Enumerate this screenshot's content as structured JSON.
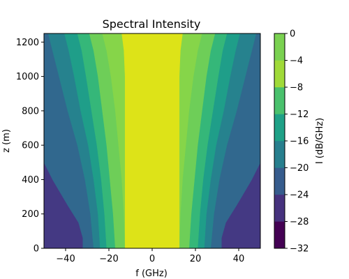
{
  "chart_data": {
    "type": "contourf",
    "title": "Spectral Intensity",
    "xlabel": "f (GHz)",
    "ylabel": "z (m)",
    "colorbar_label": "I (dB/GHz)",
    "xlim": [
      -50,
      50
    ],
    "ylim": [
      0,
      1250
    ],
    "x_ticks": [
      -40,
      -20,
      0,
      20,
      40
    ],
    "y_ticks": [
      0,
      200,
      400,
      600,
      800,
      1000,
      1200
    ],
    "levels": [
      -32,
      -28,
      -24,
      -20,
      -16,
      -12,
      -8,
      -4,
      0
    ],
    "level_colors": [
      "#440154",
      "#46327e",
      "#365c8d",
      "#277f8e",
      "#1fa187",
      "#4ac16d",
      "#a0da39",
      "#7ad151",
      "#dde318"
    ],
    "band_colors": [
      "#481f70",
      "#443983",
      "#31688e",
      "#26828e",
      "#1f9e89",
      "#35b779",
      "#6ece58",
      "#86d549",
      "#dde318"
    ],
    "contour_lines": [
      {
        "level": -4,
        "points": [
          [
            12.5,
            0
          ],
          [
            12.5,
            400
          ],
          [
            12.5,
            700
          ],
          [
            12.5,
            1000
          ],
          [
            13,
            1150
          ],
          [
            14,
            1250
          ]
        ]
      },
      {
        "level": -8,
        "points": [
          [
            12.5,
            0
          ],
          [
            13,
            200
          ],
          [
            14,
            400
          ],
          [
            15.5,
            600
          ],
          [
            17,
            800
          ],
          [
            19,
            1000
          ],
          [
            21,
            1150
          ],
          [
            23,
            1250
          ]
        ]
      },
      {
        "level": -12,
        "points": [
          [
            17,
            0
          ],
          [
            18,
            200
          ],
          [
            19.5,
            400
          ],
          [
            21,
            600
          ],
          [
            23,
            800
          ],
          [
            25,
            1000
          ],
          [
            27,
            1150
          ],
          [
            29,
            1250
          ]
        ]
      },
      {
        "level": -16,
        "points": [
          [
            21,
            0
          ],
          [
            22,
            200
          ],
          [
            23.5,
            400
          ],
          [
            25.5,
            600
          ],
          [
            28,
            800
          ],
          [
            30.5,
            1000
          ],
          [
            32.5,
            1150
          ],
          [
            34.5,
            1250
          ]
        ]
      },
      {
        "level": -20,
        "points": [
          [
            24,
            0
          ],
          [
            25,
            200
          ],
          [
            27,
            400
          ],
          [
            29.5,
            600
          ],
          [
            33,
            800
          ],
          [
            36,
            1000
          ],
          [
            38.5,
            1150
          ],
          [
            40.5,
            1250
          ]
        ]
      },
      {
        "level": -24,
        "points": [
          [
            27,
            0
          ],
          [
            28.5,
            200
          ],
          [
            31,
            400
          ],
          [
            34.5,
            600
          ],
          [
            39,
            800
          ],
          [
            43,
            1000
          ],
          [
            46,
            1150
          ],
          [
            48,
            1250
          ]
        ]
      },
      {
        "level": -28,
        "points": [
          [
            32,
            0
          ],
          [
            32,
            60
          ],
          [
            34,
            150
          ],
          [
            39,
            250
          ],
          [
            46,
            400
          ],
          [
            50,
            500
          ],
          [
            50,
            1250
          ]
        ]
      },
      {
        "level": -32,
        "points": [
          [
            50,
            0
          ],
          [
            50,
            1250
          ]
        ]
      }
    ]
  }
}
